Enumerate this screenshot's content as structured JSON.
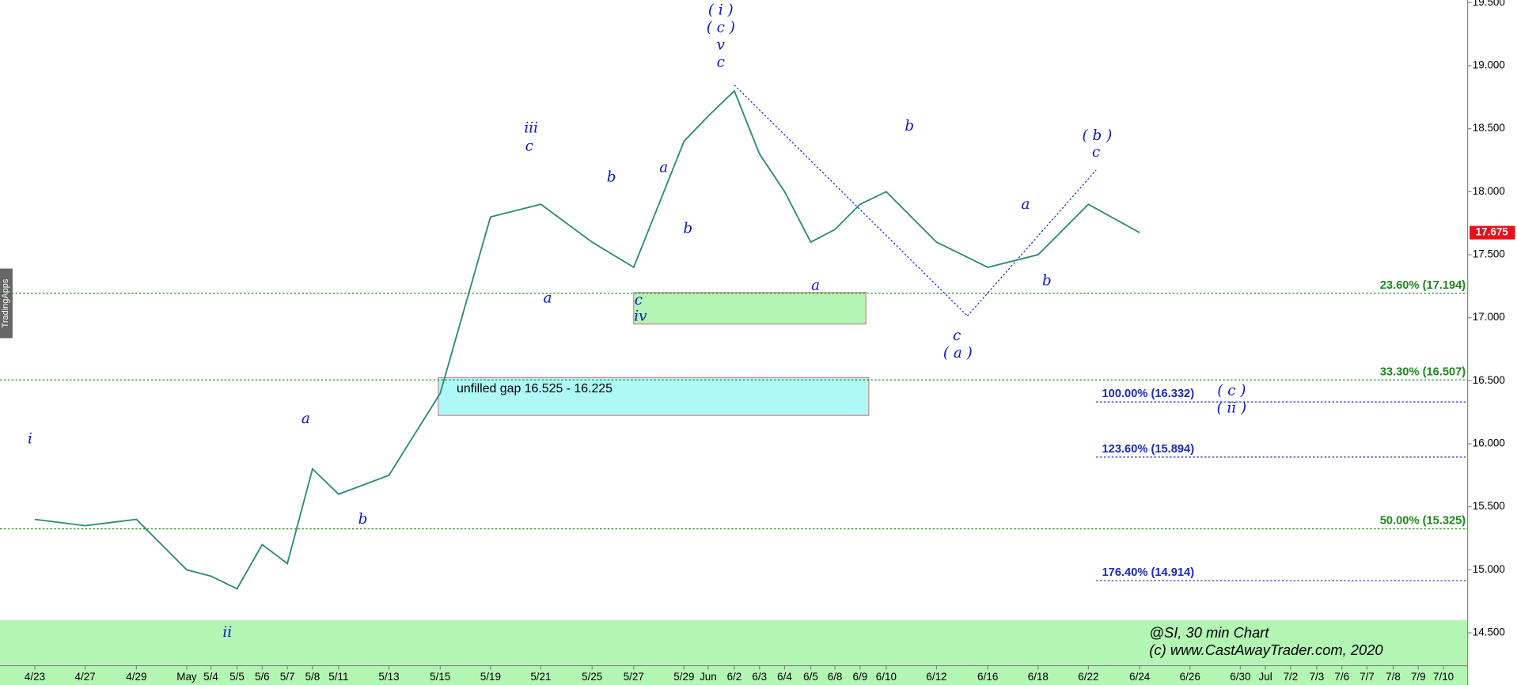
{
  "chart_data": {
    "type": "line",
    "title": "@SI, 30 min Chart",
    "subtitle": "(c) www.CastAwayTrader.com, 2020",
    "side_tab": "TradingApps",
    "categories": [
      "4/23",
      "4/27",
      "4/29",
      "May",
      "5/4",
      "5/5",
      "5/6",
      "5/7",
      "5/8",
      "5/11",
      "5/13",
      "5/15",
      "5/19",
      "5/21",
      "5/25",
      "5/27",
      "5/29",
      "Jun",
      "6/2",
      "6/3",
      "6/4",
      "6/5",
      "6/8",
      "6/9",
      "6/10",
      "6/12",
      "6/16",
      "6/18",
      "6/22",
      "6/24",
      "6/26",
      "6/30",
      "Jul",
      "7/2",
      "7/3",
      "7/6",
      "7/7",
      "7/8",
      "7/9",
      "7/10"
    ],
    "series": [
      {
        "name": "SI",
        "color": "#2a8a7a",
        "values": [
          15.4,
          15.35,
          15.4,
          15.0,
          14.95,
          14.85,
          15.2,
          15.05,
          15.8,
          15.6,
          15.75,
          16.4,
          17.8,
          17.9,
          17.6,
          17.4,
          18.4,
          18.6,
          18.8,
          18.3,
          18.0,
          17.6,
          17.7,
          17.9,
          18.0,
          17.6,
          17.4,
          17.5,
          17.9,
          17.675,
          null,
          null,
          null,
          null,
          null,
          null,
          null,
          null,
          null,
          null
        ]
      }
    ],
    "last_price": {
      "value": 17.675,
      "label": "17.675",
      "color": "#e8101a"
    },
    "ylim": [
      14.086,
      19.521
    ],
    "yticks": [
      {
        "value": 14.5,
        "label": "14.500"
      },
      {
        "value": 15,
        "label": "15.000"
      },
      {
        "value": 15.5,
        "label": "15.500"
      },
      {
        "value": 16,
        "label": "16.000"
      },
      {
        "value": 16.5,
        "label": "16.500"
      },
      {
        "value": 17,
        "label": "17.000"
      },
      {
        "value": 17.5,
        "label": "17.500"
      },
      {
        "value": 18,
        "label": "18.000"
      },
      {
        "value": 18.5,
        "label": "18.500"
      },
      {
        "value": 19,
        "label": "19.000"
      },
      {
        "value": 19.5,
        "label": "19.500"
      }
    ],
    "levels": [
      {
        "label": "23.60% (17.194)",
        "value": 17.194,
        "color": "#1a8a1a"
      },
      {
        "label": "33.30% (16.507)",
        "value": 16.507,
        "color": "#1a8a1a"
      },
      {
        "label": "50.00% (15.325)",
        "value": 15.325,
        "color": "#1a8a1a"
      },
      {
        "label": "100.00% (16.332)",
        "value": 16.332,
        "color": "#1a28c8"
      },
      {
        "label": "123.60% (15.894)",
        "value": 15.894,
        "color": "#1a28c8"
      },
      {
        "label": "176.40% (14.914)",
        "value": 14.914,
        "color": "#1a28c8"
      }
    ],
    "zones": [
      {
        "from": 17.2,
        "to": 16.95,
        "color": "#b3f5b3"
      },
      {
        "label": "unfilled gap 16.525 - 16.225",
        "from": 16.525,
        "to": 16.225,
        "color": "#aef8f8"
      },
      {
        "from": 14.6,
        "to": 14.086,
        "color": "#b3f5b3"
      }
    ],
    "annotations": [
      "i",
      "ii",
      "a",
      "b",
      "iii",
      "c",
      "a",
      "b",
      "c",
      "iv",
      "a",
      "b",
      "( i )",
      "( c )",
      "v",
      "c",
      "b",
      "a",
      "c",
      "( a )",
      "a",
      "b",
      "( b )",
      "c",
      "( c )",
      "( ii )"
    ]
  }
}
